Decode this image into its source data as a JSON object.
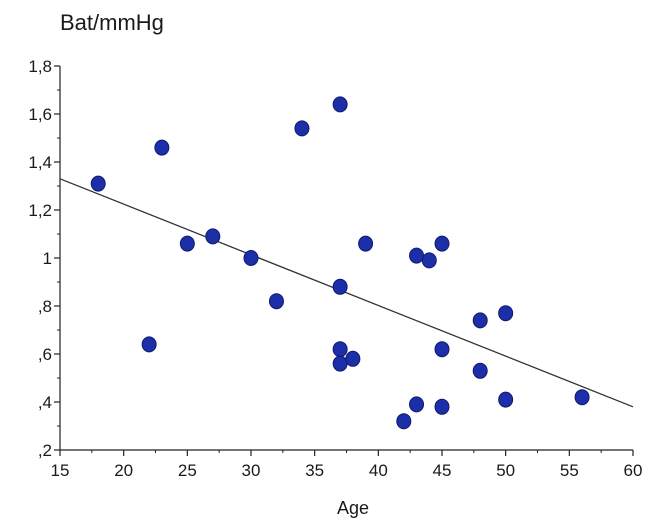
{
  "chart_data": {
    "type": "scatter",
    "title": "",
    "xlabel": "Age",
    "ylabel": "Bat/mmHg",
    "xlim": [
      15,
      60
    ],
    "ylim": [
      0.2,
      1.8
    ],
    "x_ticks": [
      15,
      20,
      25,
      30,
      35,
      40,
      45,
      50,
      55,
      60
    ],
    "x_tick_labels": [
      "15",
      "20",
      "25",
      "30",
      "35",
      "40",
      "45",
      "50",
      "55",
      "60"
    ],
    "y_ticks": [
      0.2,
      0.4,
      0.6,
      0.8,
      1.0,
      1.2,
      1.4,
      1.6,
      1.8
    ],
    "y_tick_labels": [
      ",2",
      ",4",
      ",6",
      ",8",
      "1",
      "1,2",
      "1,4",
      "1,6",
      "1,8"
    ],
    "grid": false,
    "legend": "none",
    "point_color": "#1d2fa8",
    "line_color": "#333333",
    "series": [
      {
        "points": [
          [
            18,
            1.31
          ],
          [
            22,
            0.64
          ],
          [
            23,
            1.46
          ],
          [
            25,
            1.06
          ],
          [
            27,
            1.09
          ],
          [
            30,
            1.0
          ],
          [
            32,
            0.82
          ],
          [
            34,
            1.54
          ],
          [
            37,
            1.64
          ],
          [
            37,
            0.88
          ],
          [
            37,
            0.62
          ],
          [
            37,
            0.56
          ],
          [
            38,
            0.58
          ],
          [
            39,
            1.06
          ],
          [
            42,
            0.32
          ],
          [
            43,
            1.01
          ],
          [
            43,
            0.39
          ],
          [
            44,
            0.99
          ],
          [
            45,
            1.06
          ],
          [
            45,
            0.62
          ],
          [
            45,
            0.38
          ],
          [
            48,
            0.74
          ],
          [
            48,
            0.53
          ],
          [
            50,
            0.77
          ],
          [
            50,
            0.41
          ],
          [
            56,
            0.42
          ]
        ]
      }
    ],
    "trendline": {
      "x": [
        15,
        60
      ],
      "y": [
        1.33,
        0.38
      ]
    }
  }
}
